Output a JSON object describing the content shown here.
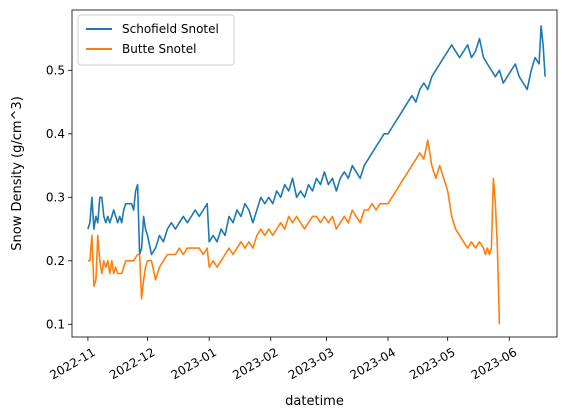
{
  "chart_data": {
    "type": "line",
    "title": "",
    "xlabel": "datetime",
    "ylabel": "Snow Density (g/cm^3)",
    "xlim": [
      "2022-10-24",
      "2023-06-25"
    ],
    "ylim": [
      0.08,
      0.595
    ],
    "x_ticks": [
      {
        "date": "2022-11-01",
        "label": "2022-11"
      },
      {
        "date": "2022-12-01",
        "label": "2022-12"
      },
      {
        "date": "2023-01-01",
        "label": "2023-01"
      },
      {
        "date": "2023-02-01",
        "label": "2023-02"
      },
      {
        "date": "2023-03-01",
        "label": "2023-03"
      },
      {
        "date": "2023-04-01",
        "label": "2023-04"
      },
      {
        "date": "2023-05-01",
        "label": "2023-05"
      },
      {
        "date": "2023-06-01",
        "label": "2023-06"
      }
    ],
    "y_ticks": [
      {
        "value": 0.1,
        "label": "0.1"
      },
      {
        "value": 0.2,
        "label": "0.2"
      },
      {
        "value": 0.3,
        "label": "0.3"
      },
      {
        "value": 0.4,
        "label": "0.4"
      },
      {
        "value": 0.5,
        "label": "0.5"
      }
    ],
    "grid": false,
    "legend_position": "top-left",
    "series": [
      {
        "name": "Schofield Snotel",
        "color": "#1f77b4",
        "points": [
          [
            "2022-11-01",
            0.25
          ],
          [
            "2022-11-02",
            0.26
          ],
          [
            "2022-11-03",
            0.3
          ],
          [
            "2022-11-04",
            0.25
          ],
          [
            "2022-11-05",
            0.27
          ],
          [
            "2022-11-06",
            0.26
          ],
          [
            "2022-11-07",
            0.3
          ],
          [
            "2022-11-08",
            0.3
          ],
          [
            "2022-11-09",
            0.27
          ],
          [
            "2022-11-10",
            0.26
          ],
          [
            "2022-11-11",
            0.27
          ],
          [
            "2022-11-12",
            0.26
          ],
          [
            "2022-11-13",
            0.27
          ],
          [
            "2022-11-14",
            0.28
          ],
          [
            "2022-11-15",
            0.27
          ],
          [
            "2022-11-16",
            0.26
          ],
          [
            "2022-11-17",
            0.27
          ],
          [
            "2022-11-18",
            0.26
          ],
          [
            "2022-11-19",
            0.28
          ],
          [
            "2022-11-20",
            0.29
          ],
          [
            "2022-11-21",
            0.29
          ],
          [
            "2022-11-22",
            0.29
          ],
          [
            "2022-11-23",
            0.29
          ],
          [
            "2022-11-24",
            0.28
          ],
          [
            "2022-11-25",
            0.31
          ],
          [
            "2022-11-26",
            0.32
          ],
          [
            "2022-11-27",
            0.21
          ],
          [
            "2022-11-28",
            0.22
          ],
          [
            "2022-11-29",
            0.27
          ],
          [
            "2022-11-30",
            0.25
          ],
          [
            "2022-12-01",
            0.24
          ],
          [
            "2022-12-03",
            0.21
          ],
          [
            "2022-12-05",
            0.22
          ],
          [
            "2022-12-07",
            0.24
          ],
          [
            "2022-12-09",
            0.23
          ],
          [
            "2022-12-11",
            0.25
          ],
          [
            "2022-12-13",
            0.26
          ],
          [
            "2022-12-15",
            0.25
          ],
          [
            "2022-12-17",
            0.26
          ],
          [
            "2022-12-19",
            0.27
          ],
          [
            "2022-12-21",
            0.26
          ],
          [
            "2022-12-23",
            0.27
          ],
          [
            "2022-12-25",
            0.28
          ],
          [
            "2022-12-27",
            0.27
          ],
          [
            "2022-12-29",
            0.28
          ],
          [
            "2022-12-31",
            0.29
          ],
          [
            "2023-01-01",
            0.23
          ],
          [
            "2023-01-03",
            0.24
          ],
          [
            "2023-01-05",
            0.23
          ],
          [
            "2023-01-07",
            0.25
          ],
          [
            "2023-01-09",
            0.24
          ],
          [
            "2023-01-11",
            0.27
          ],
          [
            "2023-01-13",
            0.26
          ],
          [
            "2023-01-15",
            0.28
          ],
          [
            "2023-01-17",
            0.27
          ],
          [
            "2023-01-19",
            0.29
          ],
          [
            "2023-01-21",
            0.28
          ],
          [
            "2023-01-23",
            0.26
          ],
          [
            "2023-01-25",
            0.28
          ],
          [
            "2023-01-27",
            0.3
          ],
          [
            "2023-01-29",
            0.29
          ],
          [
            "2023-01-31",
            0.3
          ],
          [
            "2023-02-02",
            0.29
          ],
          [
            "2023-02-04",
            0.31
          ],
          [
            "2023-02-06",
            0.3
          ],
          [
            "2023-02-08",
            0.32
          ],
          [
            "2023-02-10",
            0.31
          ],
          [
            "2023-02-12",
            0.33
          ],
          [
            "2023-02-14",
            0.3
          ],
          [
            "2023-02-16",
            0.31
          ],
          [
            "2023-02-18",
            0.3
          ],
          [
            "2023-02-20",
            0.32
          ],
          [
            "2023-02-22",
            0.31
          ],
          [
            "2023-02-24",
            0.33
          ],
          [
            "2023-02-26",
            0.32
          ],
          [
            "2023-02-28",
            0.34
          ],
          [
            "2023-03-02",
            0.32
          ],
          [
            "2023-03-04",
            0.33
          ],
          [
            "2023-03-06",
            0.31
          ],
          [
            "2023-03-08",
            0.33
          ],
          [
            "2023-03-10",
            0.34
          ],
          [
            "2023-03-12",
            0.33
          ],
          [
            "2023-03-14",
            0.35
          ],
          [
            "2023-03-16",
            0.34
          ],
          [
            "2023-03-18",
            0.33
          ],
          [
            "2023-03-20",
            0.35
          ],
          [
            "2023-03-22",
            0.36
          ],
          [
            "2023-03-24",
            0.37
          ],
          [
            "2023-03-26",
            0.38
          ],
          [
            "2023-03-28",
            0.39
          ],
          [
            "2023-03-30",
            0.4
          ],
          [
            "2023-04-01",
            0.4
          ],
          [
            "2023-04-03",
            0.41
          ],
          [
            "2023-04-05",
            0.42
          ],
          [
            "2023-04-07",
            0.43
          ],
          [
            "2023-04-09",
            0.44
          ],
          [
            "2023-04-11",
            0.45
          ],
          [
            "2023-04-13",
            0.46
          ],
          [
            "2023-04-15",
            0.45
          ],
          [
            "2023-04-17",
            0.47
          ],
          [
            "2023-04-19",
            0.48
          ],
          [
            "2023-04-21",
            0.47
          ],
          [
            "2023-04-23",
            0.49
          ],
          [
            "2023-04-25",
            0.5
          ],
          [
            "2023-04-27",
            0.51
          ],
          [
            "2023-04-29",
            0.52
          ],
          [
            "2023-05-01",
            0.53
          ],
          [
            "2023-05-03",
            0.54
          ],
          [
            "2023-05-05",
            0.53
          ],
          [
            "2023-05-07",
            0.52
          ],
          [
            "2023-05-09",
            0.53
          ],
          [
            "2023-05-11",
            0.54
          ],
          [
            "2023-05-13",
            0.52
          ],
          [
            "2023-05-15",
            0.53
          ],
          [
            "2023-05-17",
            0.55
          ],
          [
            "2023-05-19",
            0.52
          ],
          [
            "2023-05-21",
            0.51
          ],
          [
            "2023-05-23",
            0.5
          ],
          [
            "2023-05-25",
            0.49
          ],
          [
            "2023-05-27",
            0.5
          ],
          [
            "2023-05-29",
            0.48
          ],
          [
            "2023-05-31",
            0.49
          ],
          [
            "2023-06-02",
            0.5
          ],
          [
            "2023-06-04",
            0.51
          ],
          [
            "2023-06-06",
            0.49
          ],
          [
            "2023-06-08",
            0.48
          ],
          [
            "2023-06-10",
            0.47
          ],
          [
            "2023-06-12",
            0.5
          ],
          [
            "2023-06-14",
            0.52
          ],
          [
            "2023-06-16",
            0.51
          ],
          [
            "2023-06-17",
            0.57
          ],
          [
            "2023-06-18",
            0.54
          ],
          [
            "2023-06-19",
            0.49
          ]
        ]
      },
      {
        "name": "Butte Snotel",
        "color": "#ff7f0e",
        "points": [
          [
            "2022-11-01",
            0.2
          ],
          [
            "2022-11-02",
            0.2
          ],
          [
            "2022-11-03",
            0.24
          ],
          [
            "2022-11-04",
            0.16
          ],
          [
            "2022-11-05",
            0.17
          ],
          [
            "2022-11-06",
            0.24
          ],
          [
            "2022-11-07",
            0.2
          ],
          [
            "2022-11-08",
            0.18
          ],
          [
            "2022-11-09",
            0.2
          ],
          [
            "2022-11-10",
            0.19
          ],
          [
            "2022-11-11",
            0.2
          ],
          [
            "2022-11-12",
            0.18
          ],
          [
            "2022-11-13",
            0.2
          ],
          [
            "2022-11-14",
            0.18
          ],
          [
            "2022-11-15",
            0.19
          ],
          [
            "2022-11-16",
            0.18
          ],
          [
            "2022-11-18",
            0.18
          ],
          [
            "2022-11-20",
            0.2
          ],
          [
            "2022-11-22",
            0.2
          ],
          [
            "2022-11-24",
            0.2
          ],
          [
            "2022-11-26",
            0.21
          ],
          [
            "2022-11-27",
            0.21
          ],
          [
            "2022-11-28",
            0.14
          ],
          [
            "2022-11-29",
            0.17
          ],
          [
            "2022-11-30",
            0.19
          ],
          [
            "2022-12-01",
            0.2
          ],
          [
            "2022-12-03",
            0.2
          ],
          [
            "2022-12-05",
            0.17
          ],
          [
            "2022-12-07",
            0.19
          ],
          [
            "2022-12-09",
            0.2
          ],
          [
            "2022-12-11",
            0.21
          ],
          [
            "2022-12-13",
            0.21
          ],
          [
            "2022-12-15",
            0.21
          ],
          [
            "2022-12-17",
            0.22
          ],
          [
            "2022-12-19",
            0.21
          ],
          [
            "2022-12-21",
            0.22
          ],
          [
            "2022-12-23",
            0.22
          ],
          [
            "2022-12-25",
            0.22
          ],
          [
            "2022-12-27",
            0.22
          ],
          [
            "2022-12-29",
            0.21
          ],
          [
            "2022-12-31",
            0.22
          ],
          [
            "2023-01-01",
            0.19
          ],
          [
            "2023-01-03",
            0.2
          ],
          [
            "2023-01-05",
            0.19
          ],
          [
            "2023-01-07",
            0.2
          ],
          [
            "2023-01-09",
            0.21
          ],
          [
            "2023-01-11",
            0.22
          ],
          [
            "2023-01-13",
            0.21
          ],
          [
            "2023-01-15",
            0.22
          ],
          [
            "2023-01-17",
            0.23
          ],
          [
            "2023-01-19",
            0.22
          ],
          [
            "2023-01-21",
            0.23
          ],
          [
            "2023-01-23",
            0.22
          ],
          [
            "2023-01-25",
            0.24
          ],
          [
            "2023-01-27",
            0.25
          ],
          [
            "2023-01-29",
            0.24
          ],
          [
            "2023-01-31",
            0.25
          ],
          [
            "2023-02-02",
            0.24
          ],
          [
            "2023-02-04",
            0.25
          ],
          [
            "2023-02-06",
            0.26
          ],
          [
            "2023-02-08",
            0.25
          ],
          [
            "2023-02-10",
            0.27
          ],
          [
            "2023-02-12",
            0.26
          ],
          [
            "2023-02-14",
            0.27
          ],
          [
            "2023-02-16",
            0.26
          ],
          [
            "2023-02-18",
            0.25
          ],
          [
            "2023-02-20",
            0.26
          ],
          [
            "2023-02-22",
            0.27
          ],
          [
            "2023-02-24",
            0.27
          ],
          [
            "2023-02-26",
            0.26
          ],
          [
            "2023-02-28",
            0.27
          ],
          [
            "2023-03-02",
            0.26
          ],
          [
            "2023-03-04",
            0.27
          ],
          [
            "2023-03-06",
            0.25
          ],
          [
            "2023-03-08",
            0.26
          ],
          [
            "2023-03-10",
            0.27
          ],
          [
            "2023-03-12",
            0.26
          ],
          [
            "2023-03-14",
            0.28
          ],
          [
            "2023-03-16",
            0.27
          ],
          [
            "2023-03-18",
            0.26
          ],
          [
            "2023-03-20",
            0.28
          ],
          [
            "2023-03-22",
            0.28
          ],
          [
            "2023-03-24",
            0.29
          ],
          [
            "2023-03-26",
            0.28
          ],
          [
            "2023-03-28",
            0.29
          ],
          [
            "2023-03-30",
            0.29
          ],
          [
            "2023-04-01",
            0.29
          ],
          [
            "2023-04-03",
            0.3
          ],
          [
            "2023-04-05",
            0.31
          ],
          [
            "2023-04-07",
            0.32
          ],
          [
            "2023-04-09",
            0.33
          ],
          [
            "2023-04-11",
            0.34
          ],
          [
            "2023-04-13",
            0.35
          ],
          [
            "2023-04-15",
            0.36
          ],
          [
            "2023-04-17",
            0.37
          ],
          [
            "2023-04-19",
            0.36
          ],
          [
            "2023-04-21",
            0.39
          ],
          [
            "2023-04-22",
            0.37
          ],
          [
            "2023-04-23",
            0.35
          ],
          [
            "2023-04-25",
            0.33
          ],
          [
            "2023-04-27",
            0.35
          ],
          [
            "2023-04-29",
            0.33
          ],
          [
            "2023-05-01",
            0.31
          ],
          [
            "2023-05-02",
            0.29
          ],
          [
            "2023-05-03",
            0.27
          ],
          [
            "2023-05-05",
            0.25
          ],
          [
            "2023-05-07",
            0.24
          ],
          [
            "2023-05-09",
            0.23
          ],
          [
            "2023-05-11",
            0.22
          ],
          [
            "2023-05-13",
            0.23
          ],
          [
            "2023-05-15",
            0.22
          ],
          [
            "2023-05-17",
            0.23
          ],
          [
            "2023-05-19",
            0.22
          ],
          [
            "2023-05-20",
            0.21
          ],
          [
            "2023-05-21",
            0.22
          ],
          [
            "2023-05-22",
            0.21
          ],
          [
            "2023-05-23",
            0.22
          ],
          [
            "2023-05-24",
            0.33
          ],
          [
            "2023-05-25",
            0.29
          ],
          [
            "2023-05-26",
            0.22
          ],
          [
            "2023-05-27",
            0.1
          ]
        ]
      }
    ]
  }
}
